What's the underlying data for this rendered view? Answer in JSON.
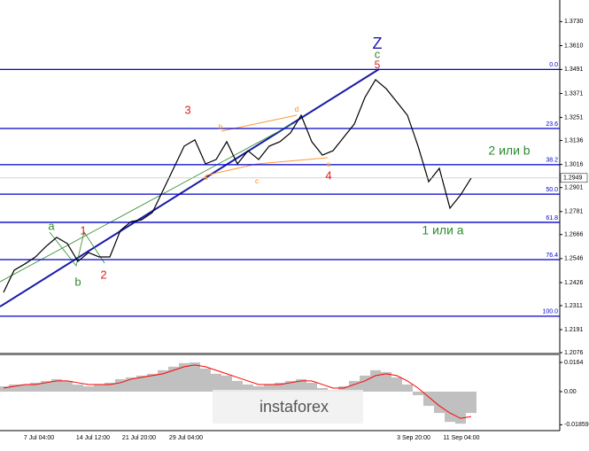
{
  "chart_data": [
    {
      "type": "line",
      "color": "#000000",
      "values": [
        1.2377,
        1.2488,
        1.2519,
        1.2554,
        1.2607,
        1.2652,
        1.2621,
        1.2532,
        1.2576,
        1.2554,
        1.2554,
        1.2687,
        1.2731,
        1.274,
        1.2776,
        1.2886,
        1.2997,
        1.3108,
        1.3139,
        1.3019,
        1.3041,
        1.313,
        1.3019,
        1.3085,
        1.3041,
        1.3108,
        1.313,
        1.3174,
        1.3262,
        1.313,
        1.3063,
        1.3085,
        1.3152,
        1.3218,
        1.3351,
        1.344,
        1.3395,
        1.3329,
        1.3262,
        1.3108,
        1.293,
        1.2997,
        1.2798,
        1.2864,
        1.2949
      ],
      "ylim": [
        1.2076,
        1.3838
      ],
      "yticks": [
        {
          "value": 1.373,
          "label": "1.3730"
        },
        {
          "value": 1.361,
          "label": "1.3610"
        },
        1.3491,
        1.3371,
        1.3251,
        1.3136,
        1.3016,
        1.2901,
        1.2781,
        1.2666,
        1.2546,
        1.2426,
        1.2311,
        1.2191,
        1.2076
      ],
      "fib_levels": {
        "values": [
          1.3491,
          1.3196,
          1.3015,
          1.2868,
          1.2727,
          1.2541,
          1.2258
        ],
        "labels": [
          "0.0",
          "23.6",
          "38.2",
          "50.0",
          "61.8",
          "76.4",
          "100.0"
        ]
      },
      "annotations": [
        "Z",
        "c",
        "5",
        "3",
        "a",
        "1",
        "b",
        "2",
        "4",
        "2 или b",
        "1 или a",
        "a",
        "b",
        "c",
        "d",
        "e"
      ],
      "x_labels": [
        "7 Jul 04:00",
        "14 Jul 12:00",
        "21 Jul 20:00",
        "29 Jul 04:00",
        "3 Sep 20:00",
        "11 Sep 04:00"
      ],
      "watermark": "instaforex"
    },
    {
      "type": "histogram",
      "color": "#c0c0c0",
      "signal_color": "#ff0000",
      "values": [
        0.003,
        0.004,
        0.004,
        0.005,
        0.006,
        0.007,
        0.006,
        0.004,
        0.003,
        0.004,
        0.005,
        0.007,
        0.008,
        0.009,
        0.01,
        0.012,
        0.014,
        0.016,
        0.0164,
        0.013,
        0.01,
        0.009,
        0.006,
        0.004,
        0.003,
        0.004,
        0.005,
        0.006,
        0.007,
        0.005,
        0.002,
        0.001,
        0.003,
        0.006,
        0.009,
        0.012,
        0.011,
        0.008,
        0.004,
        -0.002,
        -0.008,
        -0.012,
        -0.017,
        -0.018,
        -0.012
      ],
      "signal": [
        0.002,
        0.003,
        0.004,
        0.004,
        0.005,
        0.006,
        0.006,
        0.005,
        0.004,
        0.004,
        0.004,
        0.005,
        0.007,
        0.008,
        0.009,
        0.01,
        0.012,
        0.014,
        0.015,
        0.014,
        0.012,
        0.01,
        0.008,
        0.006,
        0.004,
        0.004,
        0.004,
        0.005,
        0.006,
        0.006,
        0.004,
        0.002,
        0.002,
        0.004,
        0.006,
        0.009,
        0.01,
        0.009,
        0.006,
        0.002,
        -0.003,
        -0.008,
        -0.012,
        -0.015,
        -0.014
      ],
      "ylim": [
        -0.0214,
        0.0199
      ],
      "yticks": [
        0.0164,
        {
          "value": 0,
          "label": "0.00"
        },
        -0.01859
      ]
    }
  ]
}
